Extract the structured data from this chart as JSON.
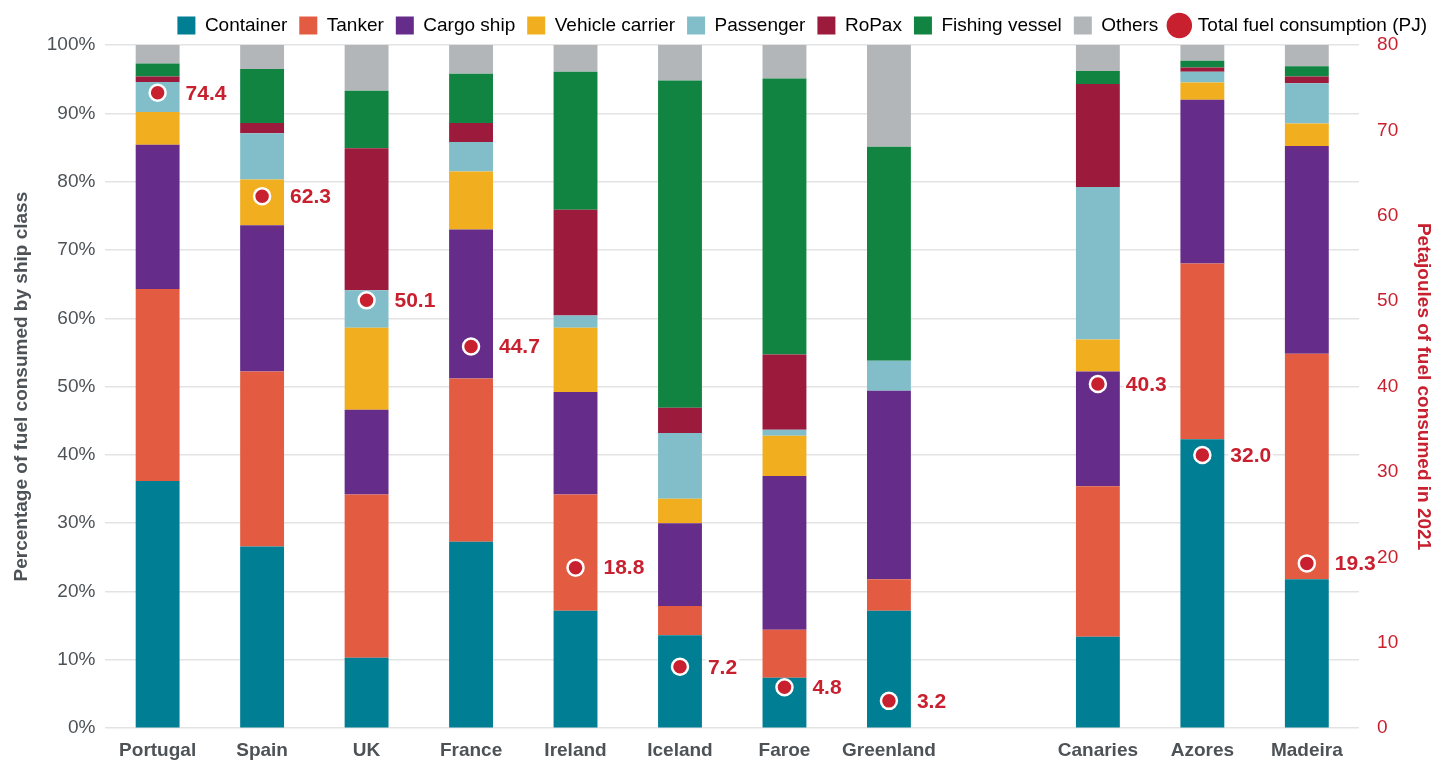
{
  "chart_data": {
    "type": "bar",
    "stacked": true,
    "ylabel": "Percentage of fuel consumed by ship class",
    "y2label": "Petajoules of fuel consumed in 2021",
    "categories": [
      "Portugal",
      "Spain",
      "UK",
      "France",
      "Ireland",
      "Iceland",
      "Faroe",
      "Greenland",
      null,
      "Canaries",
      "Azores",
      "Madeira"
    ],
    "series": [
      {
        "name": "Container",
        "color": "#007e93",
        "values": [
          36.2,
          26.6,
          10.3,
          27.3,
          17.2,
          13.6,
          7.4,
          17.2,
          null,
          13.4,
          42.3,
          21.8
        ]
      },
      {
        "name": "Tanker",
        "color": "#e35c42",
        "values": [
          28.1,
          25.6,
          23.9,
          23.9,
          17.0,
          4.3,
          7.0,
          4.6,
          null,
          22.0,
          25.7,
          33.0
        ]
      },
      {
        "name": "Cargo ship",
        "color": "#652c8a",
        "values": [
          21.1,
          21.4,
          12.4,
          21.8,
          15.0,
          12.1,
          22.5,
          27.6,
          null,
          16.8,
          24.0,
          30.4
        ]
      },
      {
        "name": "Vehicle carrier",
        "color": "#f1ae1e",
        "values": [
          4.8,
          6.7,
          12.0,
          8.5,
          9.4,
          3.6,
          5.9,
          0,
          null,
          4.7,
          2.5,
          3.3
        ]
      },
      {
        "name": "Passenger",
        "color": "#82bec9",
        "values": [
          4.4,
          6.8,
          5.5,
          4.3,
          1.8,
          9.6,
          0.9,
          4.4,
          null,
          22.3,
          1.6,
          5.9
        ]
      },
      {
        "name": "RoPax",
        "color": "#9c1b3d",
        "values": [
          0.8,
          1.5,
          20.8,
          2.8,
          15.5,
          3.7,
          11.0,
          0,
          null,
          15.1,
          0.6,
          1.0
        ]
      },
      {
        "name": "Fishing vessel",
        "color": "#118442",
        "values": [
          1.9,
          7.9,
          8.4,
          7.2,
          20.2,
          47.9,
          40.4,
          31.3,
          null,
          1.9,
          1.0,
          1.5
        ]
      },
      {
        "name": "Others",
        "color": "#b2b6b9",
        "values": [
          2.7,
          3.5,
          6.7,
          4.2,
          3.9,
          5.2,
          4.9,
          14.9,
          null,
          3.8,
          2.3,
          3.1
        ]
      },
      {
        "name": "Total fuel consumption (PJ)",
        "type": "scatter",
        "axis": "y2",
        "color": "#c8202f",
        "values": [
          74.4,
          62.3,
          50.1,
          44.7,
          18.8,
          7.2,
          4.8,
          3.2,
          null,
          40.3,
          32.0,
          19.3
        ],
        "value_labels": [
          "74.4",
          "62.3",
          "50.1",
          "44.7",
          "18.8",
          "7.2",
          "4.8",
          "3.2",
          null,
          "40.3",
          "32.0",
          "19.3"
        ]
      }
    ],
    "ylim": [
      0,
      100
    ],
    "yticks": [
      {
        "value": 0,
        "label": "0%"
      },
      {
        "value": 10,
        "label": "10%"
      },
      {
        "value": 20,
        "label": "20%"
      },
      {
        "value": 30,
        "label": "30%"
      },
      {
        "value": 40,
        "label": "40%"
      },
      {
        "value": 50,
        "label": "50%"
      },
      {
        "value": 60,
        "label": "60%"
      },
      {
        "value": 70,
        "label": "70%"
      },
      {
        "value": 80,
        "label": "80%"
      },
      {
        "value": 90,
        "label": "90%"
      },
      {
        "value": 100,
        "label": "100%"
      }
    ],
    "y2lim": [
      0,
      80
    ],
    "y2ticks": [
      0,
      10,
      20,
      30,
      40,
      50,
      60,
      70,
      80
    ],
    "grid": "y",
    "legend": "top",
    "marker": "circle"
  }
}
